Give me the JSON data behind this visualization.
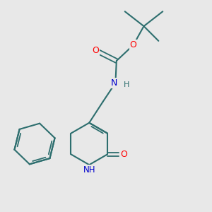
{
  "background_color": "#e8e8e8",
  "bond_color": "#2d6e6e",
  "atom_colors": {
    "O": "#ff0000",
    "N": "#0000cc",
    "C": "#2d6e6e",
    "H": "#2d6e6e"
  },
  "figsize": [
    3.0,
    3.0
  ],
  "dpi": 100
}
